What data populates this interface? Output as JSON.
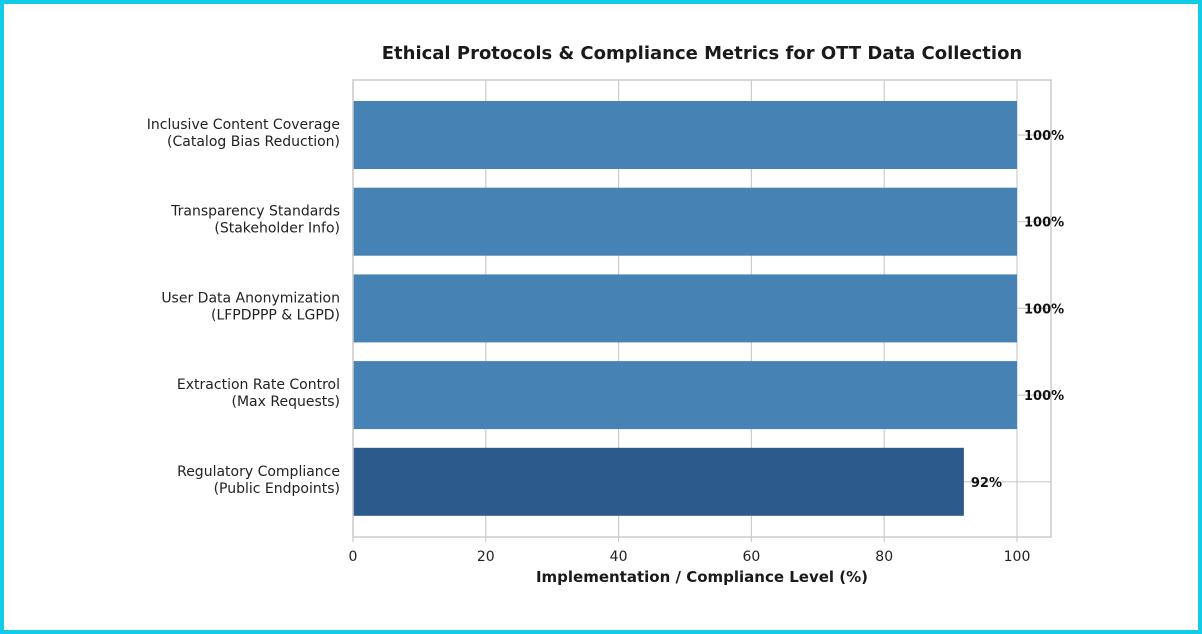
{
  "chart_data": {
    "type": "bar",
    "orientation": "horizontal",
    "title": "Ethical Protocols & Compliance Metrics for OTT Data Collection",
    "xlabel": "Implementation / Compliance Level (%)",
    "ylabel": "",
    "xlim": [
      0,
      105
    ],
    "xticks": [
      "0",
      "20",
      "40",
      "60",
      "80",
      "100"
    ],
    "grid": true,
    "categories": [
      [
        "Inclusive Content Coverage",
        "(Catalog Bias Reduction)"
      ],
      [
        "Transparency Standards",
        "(Stakeholder Info)"
      ],
      [
        "User Data Anonymization",
        "(LFPDPPP & LGPD)"
      ],
      [
        "Extraction Rate Control",
        "(Max Requests)"
      ],
      [
        "Regulatory Compliance",
        "(Public Endpoints)"
      ]
    ],
    "values": [
      100,
      100,
      100,
      100,
      92
    ],
    "data_labels": [
      "100%",
      "100%",
      "100%",
      "100%",
      "92%"
    ],
    "colors": [
      "#4682b4",
      "#4682b4",
      "#4682b4",
      "#4682b4",
      "#2c5a8c"
    ]
  }
}
